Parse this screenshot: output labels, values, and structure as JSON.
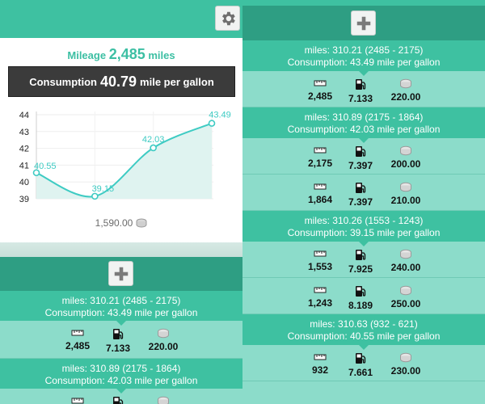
{
  "colors": {
    "teal": "#3ec1a1",
    "dark_teal": "#2e9e83",
    "light_teal": "#8cdcca",
    "line": "#3ecbc3"
  },
  "left": {
    "top_bar": {
      "settings_icon": "gear-icon"
    },
    "summary": {
      "mileage_label": "Mileage",
      "mileage_value": "2,485",
      "mileage_unit": "miles",
      "consumption_label": "Consumption",
      "consumption_value": "40.79",
      "consumption_unit": "mile per gallon",
      "total_cost": "1,590.00"
    },
    "add_icon": "plus-icon",
    "segments": [
      {
        "miles": "miles: 310.21 (2485 - 2175)",
        "consumption": "Consumption: 43.49 mile per gallon"
      },
      {
        "miles": "miles: 310.89 (2175 - 1864)",
        "consumption": "Consumption: 42.03 mile per gallon"
      }
    ],
    "entries": [
      {
        "odometer": "2,485",
        "fuel": "7.133",
        "cost": "220.00"
      }
    ]
  },
  "right": {
    "add_icon": "plus-icon",
    "segments": [
      {
        "miles": "miles: 310.21 (2485 - 2175)",
        "consumption": "Consumption: 43.49 mile per gallon"
      },
      {
        "miles": "miles: 310.89 (2175 - 1864)",
        "consumption": "Consumption: 42.03 mile per gallon"
      },
      {
        "miles": "miles: 310.26 (1553 - 1243)",
        "consumption": "Consumption: 39.15 mile per gallon"
      },
      {
        "miles": "miles: 310.63 (932 - 621)",
        "consumption": "Consumption: 40.55 mile per gallon"
      }
    ],
    "entries": [
      {
        "odometer": "2,485",
        "fuel": "7.133",
        "cost": "220.00"
      },
      {
        "odometer": "2,175",
        "fuel": "7.397",
        "cost": "200.00"
      },
      {
        "odometer": "1,864",
        "fuel": "7.397",
        "cost": "210.00"
      },
      {
        "odometer": "1,553",
        "fuel": "7.925",
        "cost": "240.00"
      },
      {
        "odometer": "1,243",
        "fuel": "8.189",
        "cost": "250.00"
      },
      {
        "odometer": "932",
        "fuel": "7.661",
        "cost": "230.00"
      }
    ]
  },
  "chart_data": {
    "type": "area",
    "x": [
      1,
      2,
      3,
      4
    ],
    "values": [
      40.55,
      39.15,
      42.03,
      43.49
    ],
    "data_labels": [
      "40.55",
      "39.15",
      "42.03",
      "43.49"
    ],
    "y_ticks": [
      "39",
      "40",
      "41",
      "42",
      "43",
      "44"
    ],
    "ylim": [
      39,
      44
    ],
    "title": "",
    "xlabel": "",
    "ylabel": "",
    "grid": true
  }
}
